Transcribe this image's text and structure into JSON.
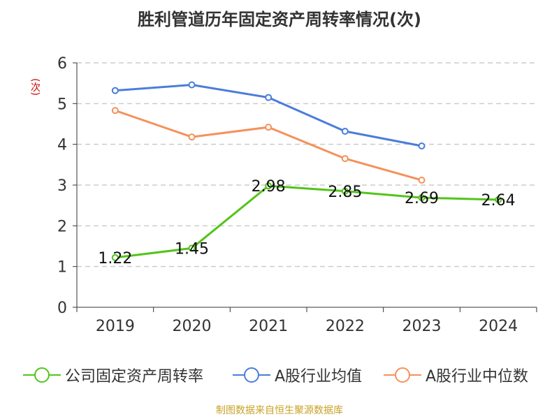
{
  "chart_data": {
    "type": "line",
    "title": "胜利管道历年固定资产周转率情况(次)",
    "ylabel": "(次)",
    "xlabel": "",
    "categories": [
      "2019",
      "2020",
      "2021",
      "2022",
      "2023",
      "2024"
    ],
    "ylim": [
      0,
      6
    ],
    "yticks": [
      "0",
      "1",
      "2",
      "3",
      "4",
      "5",
      "6"
    ],
    "grid": true,
    "legend_position": "bottom",
    "series": [
      {
        "name": "公司固定资产周转率",
        "color": "#52c41a",
        "values": [
          1.22,
          1.45,
          2.98,
          2.85,
          2.69,
          2.64
        ],
        "labels": [
          "1.22",
          "1.45",
          "2.98",
          "2.85",
          "2.69",
          "2.64"
        ]
      },
      {
        "name": "A股行业均值",
        "color": "#4a7ddb",
        "values": [
          5.32,
          5.46,
          5.15,
          4.32,
          3.96,
          null
        ]
      },
      {
        "name": "A股行业中位数",
        "color": "#f5915a",
        "values": [
          4.83,
          4.18,
          4.42,
          3.65,
          3.12,
          null
        ]
      }
    ],
    "source": "制图数据来自恒生聚源数据库"
  }
}
